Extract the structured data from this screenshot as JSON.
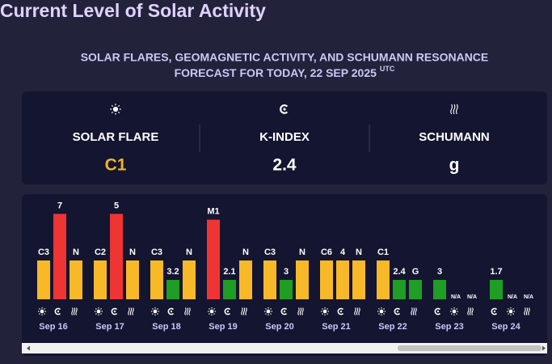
{
  "header": {
    "title": "Current Level of Solar Activity",
    "subtitle_lines": [
      "SOLAR FLARES, GEOMAGNETIC ACTIVITY, AND SCHUMANN RESONANCE",
      "FORECAST FOR TODAY, 22 SEP 2025"
    ],
    "subtitle_sup": "UTC"
  },
  "summary": [
    {
      "kind": "flare",
      "label": "SOLAR FLARE",
      "value": "C1",
      "color": "#f0b429"
    },
    {
      "kind": "kindex",
      "label": "K-INDEX",
      "value": "2.4",
      "color": "#ffffff"
    },
    {
      "kind": "schumann",
      "label": "SCHUMANN",
      "value": "g",
      "color": "#ffffff"
    }
  ],
  "forecast": {
    "type": "bar",
    "ylim": [
      0,
      5
    ],
    "days": [
      {
        "date": "Sep 16",
        "bars": [
          {
            "kind": "flare",
            "label": "C3",
            "level": 2,
            "color": "#f7b928"
          },
          {
            "kind": "kindex",
            "label": "7",
            "level": 4.4,
            "color": "#ef3434"
          },
          {
            "kind": "schumann",
            "label": "N",
            "level": 2,
            "color": "#f7b928"
          }
        ]
      },
      {
        "date": "Sep 17",
        "bars": [
          {
            "kind": "flare",
            "label": "C2",
            "level": 2,
            "color": "#f7b928"
          },
          {
            "kind": "kindex",
            "label": "5",
            "level": 4.4,
            "color": "#ef3434"
          },
          {
            "kind": "schumann",
            "label": "N",
            "level": 2,
            "color": "#f7b928"
          }
        ]
      },
      {
        "date": "Sep 18",
        "bars": [
          {
            "kind": "flare",
            "label": "C3",
            "level": 2,
            "color": "#f7b928"
          },
          {
            "kind": "kindex",
            "label": "3.2",
            "level": 1,
            "color": "#1f9d24"
          },
          {
            "kind": "schumann",
            "label": "N",
            "level": 2,
            "color": "#f7b928"
          }
        ]
      },
      {
        "date": "Sep 19",
        "bars": [
          {
            "kind": "flare",
            "label": "M1",
            "level": 4.1,
            "color": "#ef3434"
          },
          {
            "kind": "kindex",
            "label": "2.1",
            "level": 1,
            "color": "#1f9d24"
          },
          {
            "kind": "schumann",
            "label": "N",
            "level": 2,
            "color": "#f7b928"
          }
        ]
      },
      {
        "date": "Sep 20",
        "bars": [
          {
            "kind": "flare",
            "label": "C3",
            "level": 2,
            "color": "#f7b928"
          },
          {
            "kind": "kindex",
            "label": "3",
            "level": 1,
            "color": "#1f9d24"
          },
          {
            "kind": "schumann",
            "label": "N",
            "level": 2,
            "color": "#f7b928"
          }
        ]
      },
      {
        "date": "Sep 21",
        "bars": [
          {
            "kind": "flare",
            "label": "C6",
            "level": 2,
            "color": "#f7b928"
          },
          {
            "kind": "kindex",
            "label": "4",
            "level": 2,
            "color": "#f7b928"
          },
          {
            "kind": "schumann",
            "label": "N",
            "level": 2,
            "color": "#f7b928"
          }
        ]
      },
      {
        "date": "Sep 22",
        "bars": [
          {
            "kind": "flare",
            "label": "C1",
            "level": 2,
            "color": "#f7b928"
          },
          {
            "kind": "kindex",
            "label": "2.4",
            "level": 1,
            "color": "#1f9d24"
          },
          {
            "kind": "schumann",
            "label": "G",
            "level": 1,
            "color": "#1f9d24"
          }
        ]
      },
      {
        "date": "Sep 23",
        "bars": [
          {
            "kind": "kindex",
            "label": "3",
            "level": 1,
            "color": "#1f9d24"
          },
          {
            "kind": "flare",
            "label": "N/A",
            "level": null,
            "color": "#ffffff"
          },
          {
            "kind": "schumann",
            "label": "N/A",
            "level": null,
            "color": "#ffffff"
          }
        ]
      },
      {
        "date": "Sep 24",
        "bars": [
          {
            "kind": "kindex",
            "label": "1.7",
            "level": 1,
            "color": "#1f9d24"
          },
          {
            "kind": "flare",
            "label": "N/A",
            "level": null,
            "color": "#ffffff"
          },
          {
            "kind": "schumann",
            "label": "N/A",
            "level": null,
            "color": "#ffffff"
          }
        ]
      }
    ]
  }
}
